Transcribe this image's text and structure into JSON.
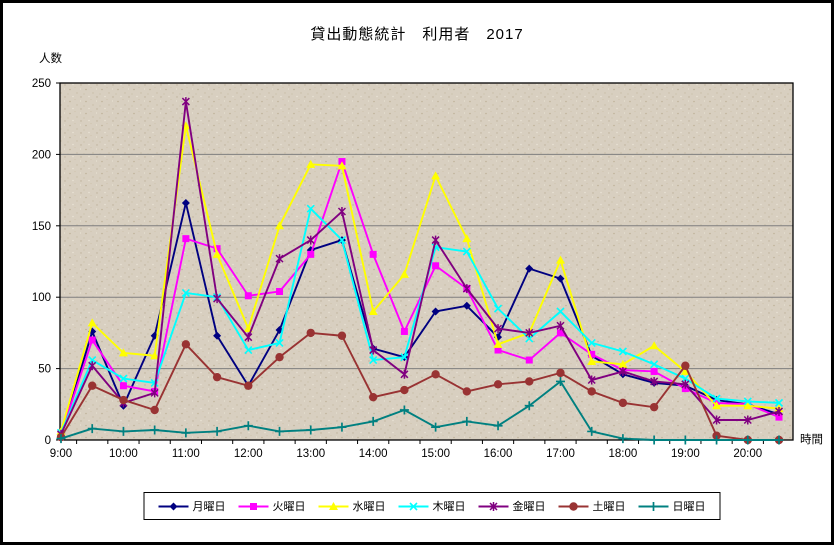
{
  "chart_data": {
    "type": "line",
    "title": "貸出動態統計　利用者　2017",
    "ylabel": "人数",
    "xlabel": "時間",
    "ylim": [
      0,
      250
    ],
    "yticks": [
      0,
      50,
      100,
      150,
      200,
      250
    ],
    "grid": "horizontal",
    "legend_position": "bottom",
    "plot_bg_color": "#d8cfc0",
    "gridline_color": "#7f7f7f",
    "axis_color": "#000000",
    "x_categories": [
      "9:00",
      "9:30",
      "10:00",
      "10:30",
      "11:00",
      "11:30",
      "12:00",
      "12:30",
      "13:00",
      "13:30",
      "14:00",
      "14:30",
      "15:00",
      "15:30",
      "16:00",
      "16:30",
      "17:00",
      "17:30",
      "18:00",
      "18:30",
      "19:00",
      "19:30",
      "20:00",
      "20:30"
    ],
    "x_axis_labels": [
      "9:00",
      "10:00",
      "11:00",
      "12:00",
      "13:00",
      "14:00",
      "15:00",
      "16:00",
      "17:00",
      "18:00",
      "19:00",
      "20:00"
    ],
    "series": [
      {
        "name": "月曜日",
        "color": "#000080",
        "marker": "diamond",
        "values": [
          3,
          76,
          24,
          73,
          166,
          73,
          38,
          77,
          133,
          140,
          64,
          58,
          90,
          94,
          72,
          120,
          113,
          59,
          46,
          40,
          38,
          28,
          25,
          18
        ]
      },
      {
        "name": "火曜日",
        "color": "#ff00ff",
        "marker": "square",
        "values": [
          4,
          70,
          38,
          34,
          141,
          134,
          101,
          104,
          130,
          195,
          130,
          76,
          122,
          106,
          63,
          56,
          75,
          60,
          49,
          48,
          36,
          26,
          25,
          16
        ]
      },
      {
        "name": "水曜日",
        "color": "#ffff00",
        "marker": "triangle",
        "values": [
          6,
          82,
          61,
          59,
          220,
          130,
          78,
          150,
          193,
          192,
          90,
          116,
          185,
          141,
          67,
          75,
          126,
          55,
          53,
          66,
          48,
          24,
          24,
          22
        ]
      },
      {
        "name": "木曜日",
        "color": "#00ffff",
        "marker": "x",
        "values": [
          5,
          56,
          43,
          40,
          103,
          100,
          63,
          68,
          162,
          140,
          56,
          58,
          135,
          132,
          92,
          71,
          90,
          68,
          62,
          53,
          43,
          29,
          27,
          26
        ]
      },
      {
        "name": "金曜日",
        "color": "#800080",
        "marker": "star",
        "values": [
          4,
          52,
          26,
          33,
          237,
          99,
          72,
          127,
          140,
          160,
          63,
          46,
          140,
          106,
          78,
          75,
          80,
          42,
          48,
          41,
          39,
          14,
          14,
          20
        ]
      },
      {
        "name": "土曜日",
        "color": "#993333",
        "marker": "circle",
        "values": [
          2,
          38,
          28,
          21,
          67,
          44,
          38,
          58,
          75,
          73,
          30,
          35,
          46,
          34,
          39,
          41,
          47,
          34,
          26,
          23,
          52,
          3,
          0,
          0
        ]
      },
      {
        "name": "日曜日",
        "color": "#008080",
        "marker": "plus",
        "values": [
          1,
          8,
          6,
          7,
          5,
          6,
          10,
          6,
          7,
          9,
          13,
          21,
          9,
          13,
          10,
          24,
          41,
          6,
          1,
          0,
          0,
          0,
          0,
          0
        ]
      }
    ]
  }
}
